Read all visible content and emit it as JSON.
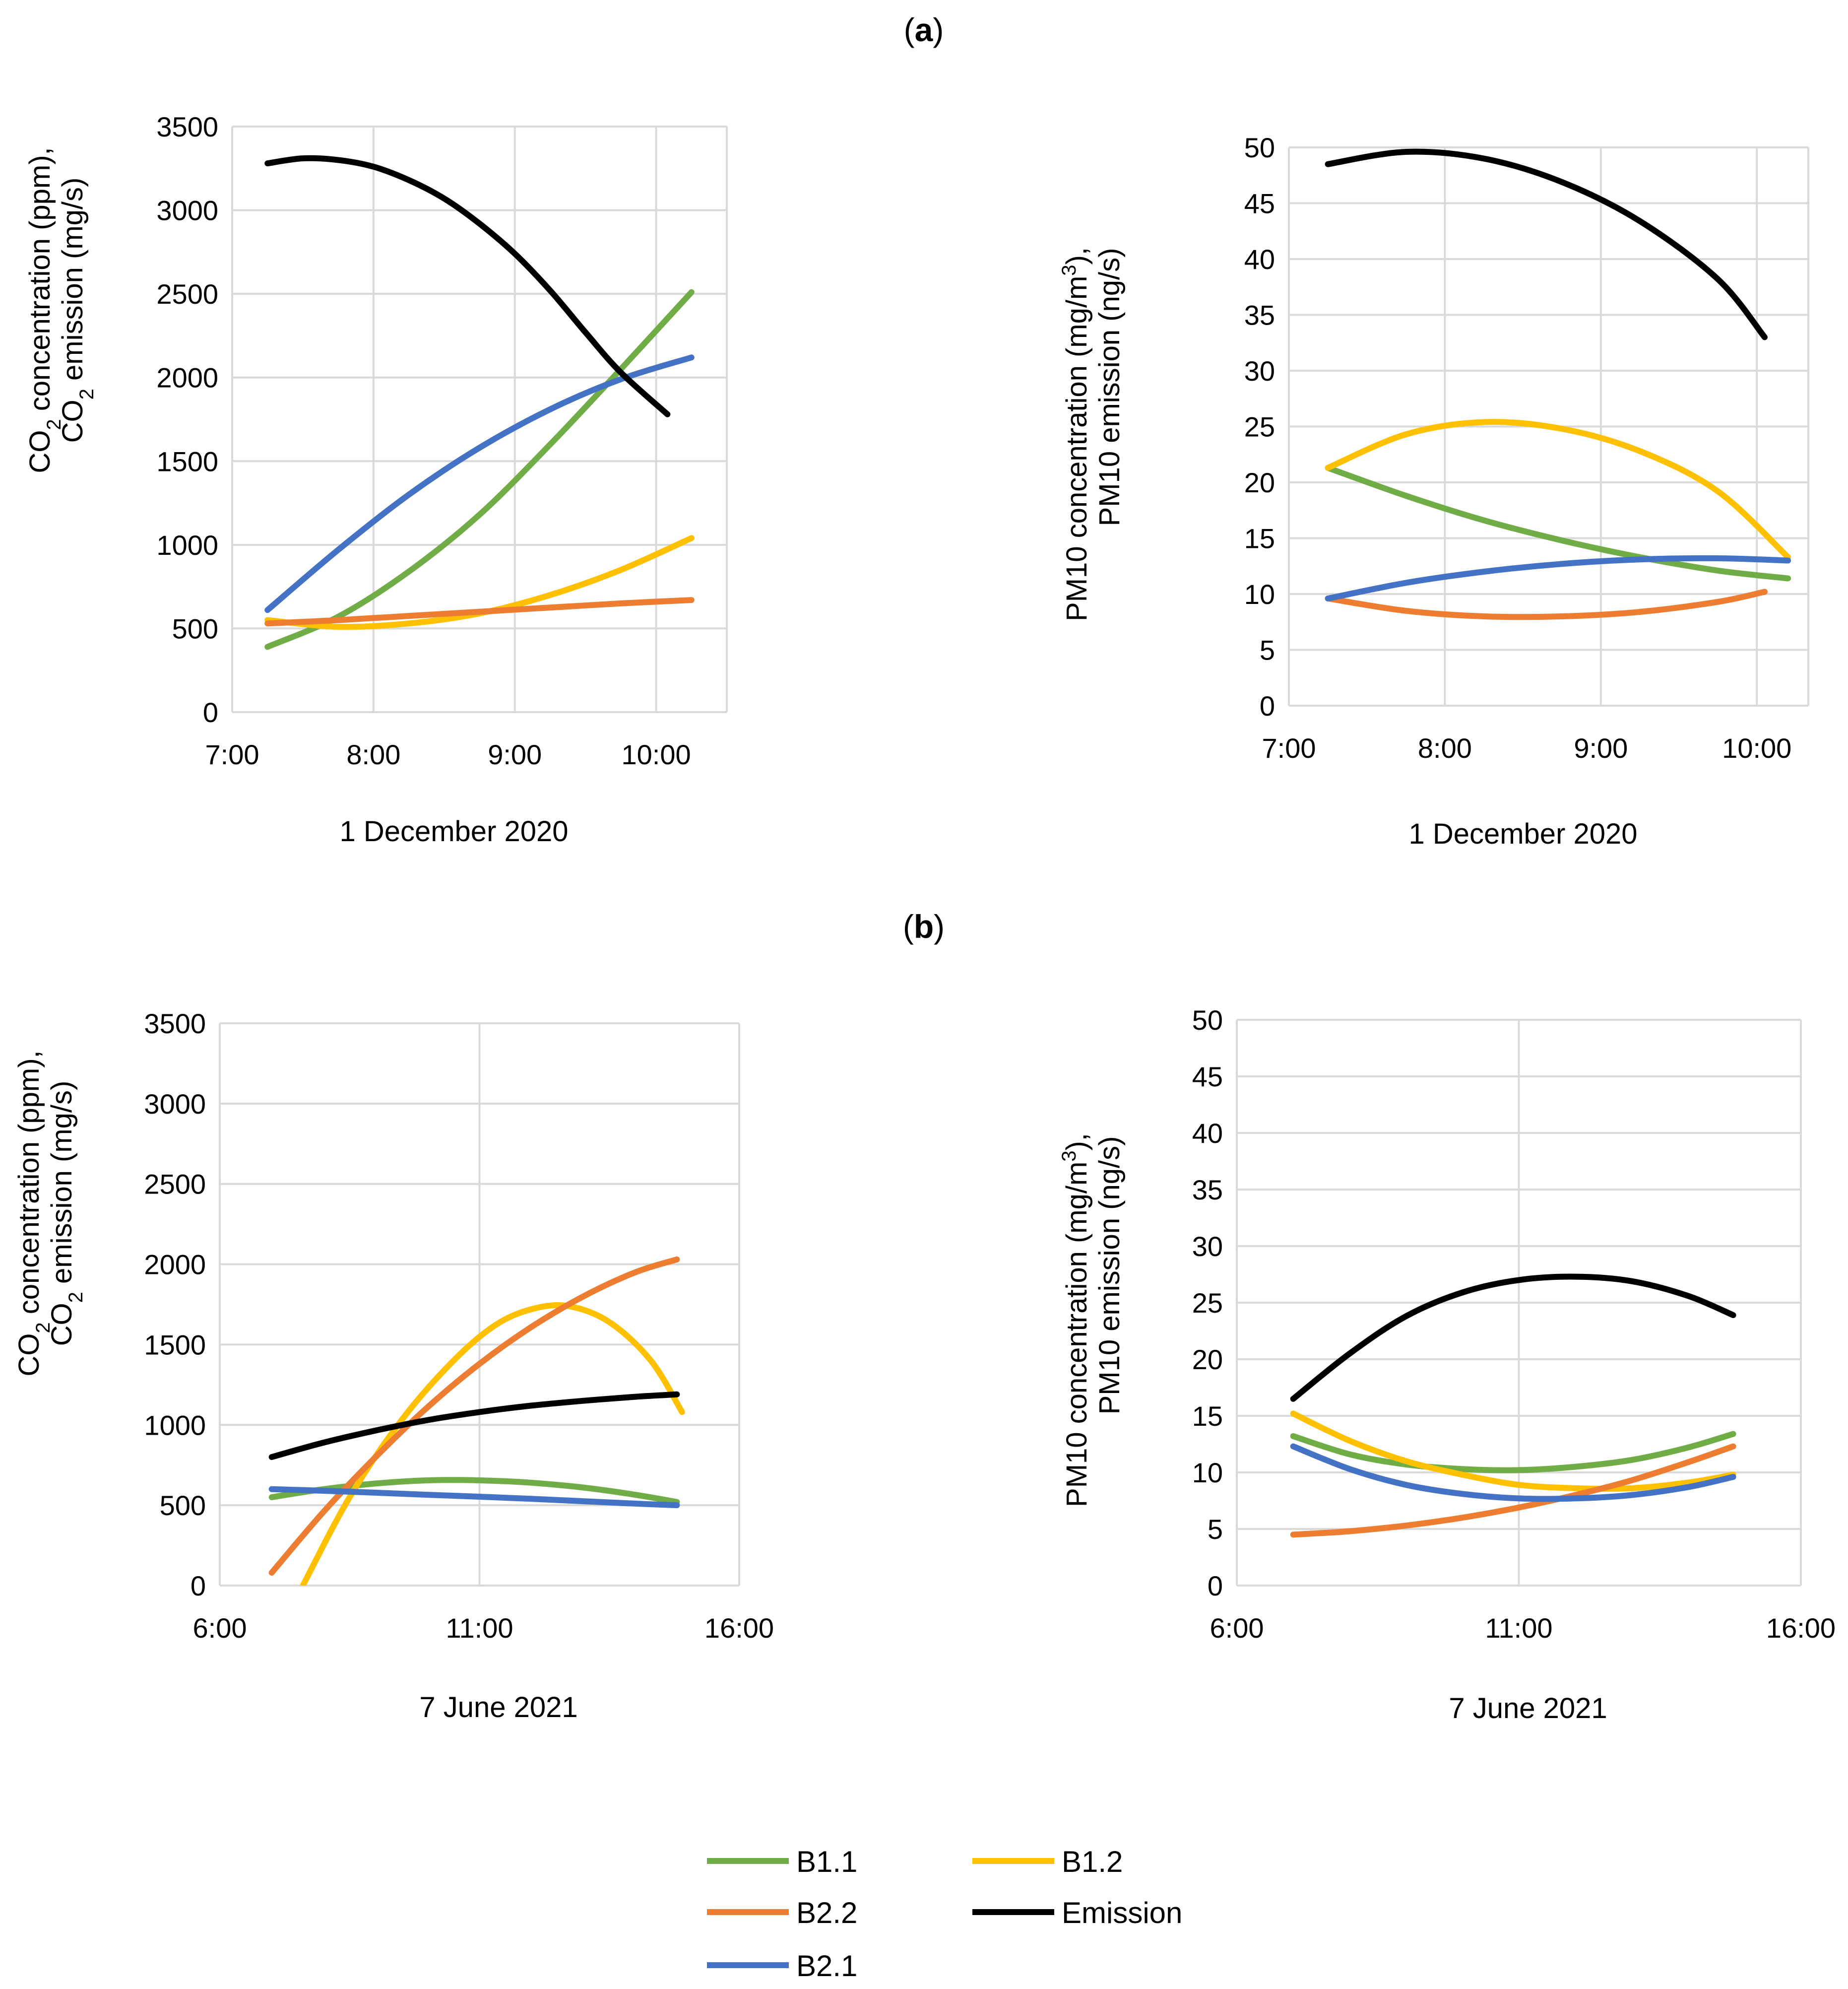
{
  "panels": [
    {
      "label_bold": "a"
    },
    {
      "label_bold": "b"
    }
  ],
  "colors": {
    "B1.1": "#70ad47",
    "B1.2": "#ffc000",
    "B2.2": "#ed7d31",
    "Emission": "#000000",
    "B2.1": "#4472c4"
  },
  "legend": [
    {
      "name": "B1.1",
      "color": "#70ad47"
    },
    {
      "name": "B1.2",
      "color": "#ffc000"
    },
    {
      "name": "B2.2",
      "color": "#ed7d31"
    },
    {
      "name": "Emission",
      "color": "#000000"
    },
    {
      "name": "B2.1",
      "color": "#4472c4"
    }
  ],
  "chart_data": [
    {
      "id": "a-co2",
      "type": "line",
      "panel": "a",
      "title": "",
      "xlabel": "1 December 2020",
      "ylabel_line1": {
        "pre": "CO",
        "sub": "2",
        "post": " concentration (ppm),"
      },
      "ylabel_line2": {
        "pre": "CO",
        "sub": "2",
        "post": " emission (mg/s)"
      },
      "xlim": [
        7.0,
        10.5
      ],
      "ylim": [
        0,
        3500
      ],
      "xticks": [
        {
          "v": 7,
          "label": "7:00"
        },
        {
          "v": 8,
          "label": "8:00"
        },
        {
          "v": 9,
          "label": "9:00"
        },
        {
          "v": 10,
          "label": "10:00"
        }
      ],
      "yticks": [
        {
          "v": 0,
          "label": "0"
        },
        {
          "v": 500,
          "label": "500"
        },
        {
          "v": 1000,
          "label": "1000"
        },
        {
          "v": 1500,
          "label": "1500"
        },
        {
          "v": 2000,
          "label": "2000"
        },
        {
          "v": 2500,
          "label": "2500"
        },
        {
          "v": 3000,
          "label": "3000"
        },
        {
          "v": 3500,
          "label": "3500"
        }
      ],
      "grid": true,
      "series": [
        {
          "name": "B1.1",
          "x": [
            7.25,
            7.75,
            8.25,
            8.75,
            9.25,
            9.75,
            10.25
          ],
          "y": [
            390,
            570,
            840,
            1180,
            1600,
            2050,
            2510
          ]
        },
        {
          "name": "B1.2",
          "x": [
            7.25,
            7.75,
            8.25,
            8.75,
            9.25,
            9.75,
            10.25
          ],
          "y": [
            550,
            510,
            530,
            590,
            700,
            850,
            1040
          ]
        },
        {
          "name": "B2.2",
          "x": [
            7.25,
            7.75,
            8.25,
            8.75,
            9.25,
            9.75,
            10.25
          ],
          "y": [
            530,
            550,
            575,
            600,
            625,
            650,
            670
          ]
        },
        {
          "name": "B2.1",
          "x": [
            7.25,
            7.75,
            8.25,
            8.75,
            9.25,
            9.75,
            10.25
          ],
          "y": [
            610,
            970,
            1300,
            1580,
            1810,
            1990,
            2120
          ]
        },
        {
          "name": "Emission",
          "x": [
            7.25,
            7.5,
            7.75,
            8.0,
            8.25,
            8.5,
            8.75,
            9.0,
            9.25,
            9.5,
            9.75,
            10.08
          ],
          "y": [
            3280,
            3310,
            3300,
            3260,
            3180,
            3070,
            2920,
            2740,
            2520,
            2270,
            2030,
            1780
          ]
        }
      ]
    },
    {
      "id": "a-pm10",
      "type": "line",
      "panel": "a",
      "title": "",
      "xlabel": "1 December 2020",
      "ylabel_line1": {
        "pre": "PM10 concentration  (mg/m",
        "sup": "3",
        "post": "),"
      },
      "ylabel_line2": {
        "pre": "PM10 emission (ng/s)"
      },
      "xlim": [
        7.0,
        10.33
      ],
      "ylim": [
        0,
        50
      ],
      "xticks": [
        {
          "v": 7,
          "label": "7:00"
        },
        {
          "v": 8,
          "label": "8:00"
        },
        {
          "v": 9,
          "label": "9:00"
        },
        {
          "v": 10,
          "label": "10:00"
        }
      ],
      "yticks": [
        {
          "v": 0,
          "label": "0"
        },
        {
          "v": 5,
          "label": "5"
        },
        {
          "v": 10,
          "label": "10"
        },
        {
          "v": 15,
          "label": "15"
        },
        {
          "v": 20,
          "label": "20"
        },
        {
          "v": 25,
          "label": "25"
        },
        {
          "v": 30,
          "label": "30"
        },
        {
          "v": 35,
          "label": "35"
        },
        {
          "v": 40,
          "label": "40"
        },
        {
          "v": 45,
          "label": "45"
        },
        {
          "v": 50,
          "label": "50"
        }
      ],
      "grid": true,
      "series": [
        {
          "name": "B1.1",
          "x": [
            7.25,
            7.75,
            8.25,
            8.75,
            9.25,
            9.75,
            10.2
          ],
          "y": [
            21.3,
            18.8,
            16.6,
            14.8,
            13.3,
            12.1,
            11.4
          ]
        },
        {
          "name": "B1.2",
          "x": [
            7.25,
            7.75,
            8.25,
            8.75,
            9.25,
            9.75,
            10.2
          ],
          "y": [
            21.3,
            24.3,
            25.4,
            24.8,
            22.8,
            19.2,
            13.3
          ]
        },
        {
          "name": "B2.2",
          "x": [
            7.25,
            7.75,
            8.25,
            8.75,
            9.25,
            9.75,
            10.05
          ],
          "y": [
            9.6,
            8.5,
            8.0,
            8.0,
            8.4,
            9.3,
            10.2
          ]
        },
        {
          "name": "B2.1",
          "x": [
            7.25,
            7.75,
            8.25,
            8.75,
            9.25,
            9.75,
            10.2
          ],
          "y": [
            9.6,
            11.0,
            12.0,
            12.7,
            13.1,
            13.2,
            13.0
          ]
        },
        {
          "name": "Emission",
          "x": [
            7.25,
            7.75,
            8.25,
            8.75,
            9.25,
            9.75,
            10.05
          ],
          "y": [
            48.5,
            49.6,
            49.0,
            46.9,
            43.4,
            38.2,
            33.0
          ]
        }
      ]
    },
    {
      "id": "b-co2",
      "type": "line",
      "panel": "b",
      "title": "",
      "xlabel": "7 June 2021",
      "ylabel_line1": {
        "pre": "CO",
        "sub": "2",
        "post": " concentration (ppm),"
      },
      "ylabel_line2": {
        "pre": "CO",
        "sub": "2",
        "post": " emission (mg/s)"
      },
      "xlim": [
        6.0,
        16.0
      ],
      "ylim": [
        0,
        3500
      ],
      "xticks": [
        {
          "v": 6,
          "label": "6:00"
        },
        {
          "v": 11,
          "label": "11:00"
        },
        {
          "v": 16,
          "label": "16:00"
        }
      ],
      "yticks": [
        {
          "v": 0,
          "label": "0"
        },
        {
          "v": 500,
          "label": "500"
        },
        {
          "v": 1000,
          "label": "1000"
        },
        {
          "v": 1500,
          "label": "1500"
        },
        {
          "v": 2000,
          "label": "2000"
        },
        {
          "v": 2500,
          "label": "2500"
        },
        {
          "v": 3000,
          "label": "3000"
        },
        {
          "v": 3500,
          "label": "3500"
        }
      ],
      "grid": true,
      "series": [
        {
          "name": "B1.1",
          "x": [
            7.0,
            8.0,
            9.0,
            10.0,
            11.0,
            12.0,
            13.0,
            14.0,
            14.8
          ],
          "y": [
            550,
            600,
            635,
            655,
            655,
            640,
            610,
            565,
            520
          ]
        },
        {
          "name": "B1.2",
          "x": [
            7.6,
            8.5,
            9.5,
            10.5,
            11.3,
            12.0,
            12.7,
            13.5,
            14.3,
            14.9
          ],
          "y": [
            0,
            550,
            1030,
            1400,
            1620,
            1720,
            1740,
            1640,
            1400,
            1080
          ]
        },
        {
          "name": "B2.2",
          "x": [
            7.0,
            8.0,
            9.0,
            10.0,
            11.0,
            12.0,
            13.0,
            14.0,
            14.8
          ],
          "y": [
            80,
            460,
            800,
            1110,
            1380,
            1610,
            1800,
            1950,
            2030
          ]
        },
        {
          "name": "B2.1",
          "x": [
            7.0,
            8.0,
            9.0,
            10.0,
            11.0,
            12.0,
            13.0,
            14.0,
            14.8
          ],
          "y": [
            600,
            590,
            578,
            565,
            553,
            540,
            525,
            510,
            500
          ]
        },
        {
          "name": "Emission",
          "x": [
            7.0,
            8.0,
            9.0,
            10.0,
            11.0,
            12.0,
            13.0,
            14.0,
            14.8
          ],
          "y": [
            800,
            890,
            965,
            1030,
            1080,
            1120,
            1150,
            1175,
            1190
          ]
        }
      ]
    },
    {
      "id": "b-pm10",
      "type": "line",
      "panel": "b",
      "title": "",
      "xlabel": "7 June 2021",
      "ylabel_line1": {
        "pre": "PM10 concentration (mg/m",
        "sup": "3",
        "post": "),"
      },
      "ylabel_line2": {
        "pre": "PM10 emission (ng/s)"
      },
      "xlim": [
        6.0,
        16.0
      ],
      "ylim": [
        0,
        50
      ],
      "xticks": [
        {
          "v": 6,
          "label": "6:00"
        },
        {
          "v": 11,
          "label": "11:00"
        },
        {
          "v": 16,
          "label": "16:00"
        }
      ],
      "yticks": [
        {
          "v": 0,
          "label": "0"
        },
        {
          "v": 5,
          "label": "5"
        },
        {
          "v": 10,
          "label": "10"
        },
        {
          "v": 15,
          "label": "15"
        },
        {
          "v": 20,
          "label": "20"
        },
        {
          "v": 25,
          "label": "25"
        },
        {
          "v": 30,
          "label": "30"
        },
        {
          "v": 35,
          "label": "35"
        },
        {
          "v": 40,
          "label": "40"
        },
        {
          "v": 45,
          "label": "45"
        },
        {
          "v": 50,
          "label": "50"
        }
      ],
      "grid": true,
      "series": [
        {
          "name": "B1.1",
          "x": [
            7.0,
            8.0,
            9.0,
            10.0,
            11.0,
            12.0,
            13.0,
            14.0,
            14.8
          ],
          "y": [
            13.2,
            11.6,
            10.7,
            10.3,
            10.2,
            10.5,
            11.1,
            12.2,
            13.4
          ]
        },
        {
          "name": "B1.2",
          "x": [
            7.0,
            8.0,
            9.0,
            10.0,
            11.0,
            12.0,
            13.0,
            14.0,
            14.8
          ],
          "y": [
            15.2,
            12.8,
            11.0,
            9.8,
            8.9,
            8.6,
            8.6,
            9.1,
            9.8
          ]
        },
        {
          "name": "B2.2",
          "x": [
            7.0,
            8.0,
            9.0,
            10.0,
            11.0,
            12.0,
            13.0,
            14.0,
            14.8
          ],
          "y": [
            4.5,
            4.8,
            5.3,
            6.0,
            6.9,
            8.0,
            9.3,
            10.9,
            12.3
          ]
        },
        {
          "name": "B2.1",
          "x": [
            7.0,
            8.0,
            9.0,
            10.0,
            11.0,
            12.0,
            13.0,
            14.0,
            14.8
          ],
          "y": [
            12.3,
            10.3,
            8.9,
            8.1,
            7.7,
            7.7,
            8.0,
            8.7,
            9.6
          ]
        },
        {
          "name": "Emission",
          "x": [
            7.0,
            8.0,
            9.0,
            10.0,
            11.0,
            12.0,
            13.0,
            14.0,
            14.8
          ],
          "y": [
            16.5,
            20.5,
            23.8,
            25.9,
            27.0,
            27.3,
            26.9,
            25.6,
            23.9
          ]
        }
      ]
    }
  ]
}
